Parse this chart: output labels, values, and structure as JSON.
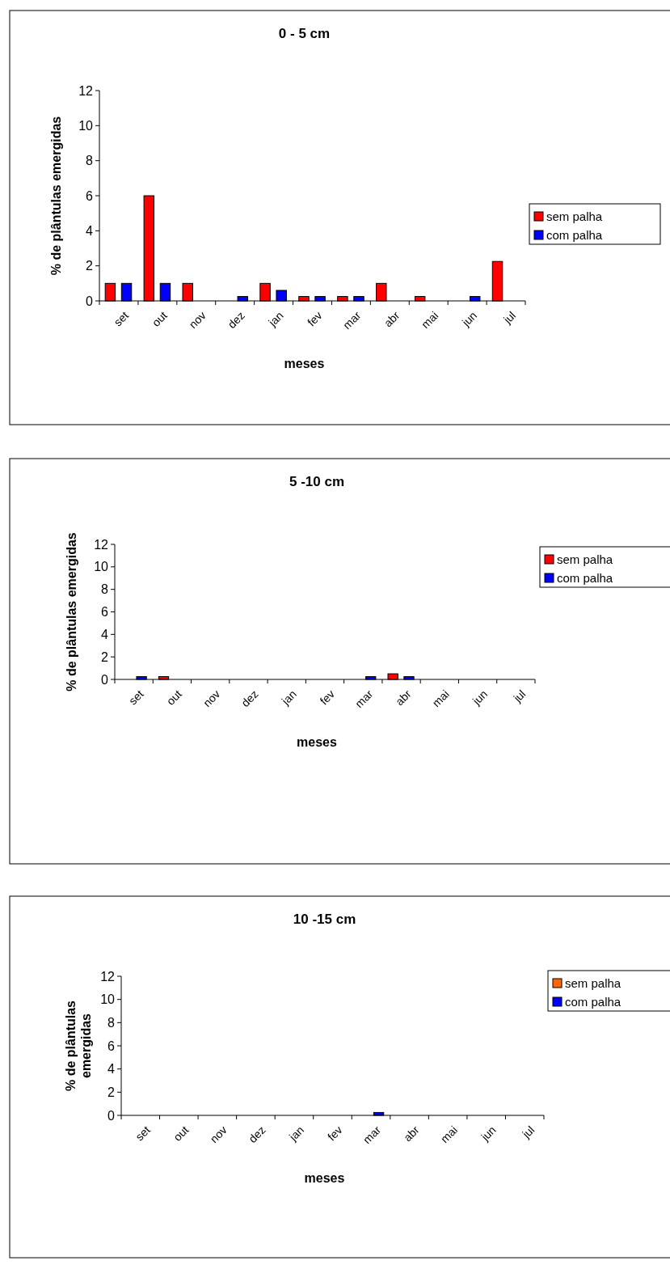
{
  "chart_data": [
    {
      "type": "bar",
      "title": "0 - 5 cm",
      "xlabel": "meses",
      "ylabel": "% de plântulas emergidas",
      "categories": [
        "set",
        "out",
        "nov",
        "dez",
        "jan",
        "fev",
        "mar",
        "abr",
        "mai",
        "jun",
        "jul"
      ],
      "ylim": [
        0,
        12
      ],
      "yticks": [
        0,
        2,
        4,
        6,
        8,
        10,
        12
      ],
      "legend": "right",
      "grid": false,
      "series": [
        {
          "name": "sem palha",
          "color": "#ff0000",
          "values": [
            1,
            6,
            1,
            0,
            1,
            0.25,
            0.25,
            1,
            0.25,
            0,
            2.25
          ]
        },
        {
          "name": "com palha",
          "color": "#0000ff",
          "values": [
            1,
            1,
            0,
            0.25,
            0.6,
            0.25,
            0.25,
            0,
            0,
            0.25,
            0
          ]
        }
      ]
    },
    {
      "type": "bar",
      "title": "5 -10 cm",
      "xlabel": "meses",
      "ylabel": "% de plântulas emergidas",
      "categories": [
        "set",
        "out",
        "nov",
        "dez",
        "jan",
        "fev",
        "mar",
        "abr",
        "mai",
        "jun",
        "jul"
      ],
      "ylim": [
        0,
        12
      ],
      "yticks": [
        0,
        2,
        4,
        6,
        8,
        10,
        12
      ],
      "legend": "right",
      "grid": false,
      "series": [
        {
          "name": "sem palha",
          "color": "#ff0000",
          "values": [
            0,
            0.25,
            0,
            0,
            0,
            0,
            0,
            0.5,
            0,
            0,
            0
          ]
        },
        {
          "name": "com palha",
          "color": "#0000ff",
          "values": [
            0.25,
            0,
            0,
            0,
            0,
            0,
            0.25,
            0.25,
            0,
            0,
            0
          ]
        }
      ]
    },
    {
      "type": "bar",
      "title": "10 -15 cm",
      "xlabel": "meses",
      "ylabel": "% de plântulas\nemergidas",
      "categories": [
        "set",
        "out",
        "nov",
        "dez",
        "jan",
        "fev",
        "mar",
        "abr",
        "mai",
        "jun",
        "jul"
      ],
      "ylim": [
        0,
        12
      ],
      "yticks": [
        0,
        2,
        4,
        6,
        8,
        10,
        12
      ],
      "legend": "right",
      "grid": false,
      "series": [
        {
          "name": "sem palha",
          "color": "#ff6600",
          "values": [
            0,
            0,
            0,
            0,
            0,
            0,
            0,
            0,
            0,
            0,
            0
          ]
        },
        {
          "name": "com palha",
          "color": "#0000ff",
          "values": [
            0,
            0,
            0,
            0,
            0,
            0,
            0.25,
            0,
            0,
            0,
            0
          ]
        }
      ]
    }
  ]
}
